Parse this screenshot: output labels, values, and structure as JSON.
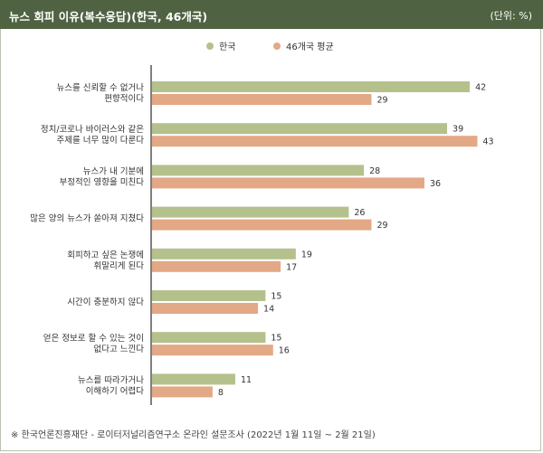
{
  "header": {
    "title": "뉴스 회피 이유(복수응답)(한국, 46개국)",
    "unit": "(단위: %)"
  },
  "footnote": "※ 한국언론진흥재단 - 로이터저널리즘연구소 온라인 설문조사 (2022년 1월 11일 ~ 2월 21일)",
  "colors": {
    "korea": "#b5c18c",
    "avg46": "#e3a885",
    "header": "#4f6342"
  },
  "chart_data": {
    "type": "bar",
    "orientation": "horizontal",
    "title": "뉴스 회피 이유(복수응답)(한국, 46개국)",
    "unit": "(단위: %)",
    "xlim": [
      0,
      45
    ],
    "legend_position": "top-center",
    "categories": [
      [
        "뉴스를 신뢰할 수 없거나",
        "편향적이다"
      ],
      [
        "정치/코로나 바이러스와 같은",
        "주제를 너무 많이 다룬다"
      ],
      [
        "뉴스가 내 기분에",
        "부정적인 영향을 미친다"
      ],
      [
        "많은 양의 뉴스가 쏟아져 지쳤다"
      ],
      [
        "회피하고 싶은 논쟁에",
        "휘말리게 된다"
      ],
      [
        "시간이 충분하지 않다"
      ],
      [
        "얻은 정보로 할 수 있는 것이",
        "없다고 느낀다"
      ],
      [
        "뉴스를 따라가거나",
        "이해하기 어렵다"
      ]
    ],
    "series": [
      {
        "name": "한국",
        "values": [
          42,
          39,
          28,
          26,
          19,
          15,
          15,
          11
        ]
      },
      {
        "name": "46개국 평균",
        "values": [
          29,
          43,
          36,
          29,
          17,
          14,
          16,
          8
        ]
      }
    ]
  }
}
